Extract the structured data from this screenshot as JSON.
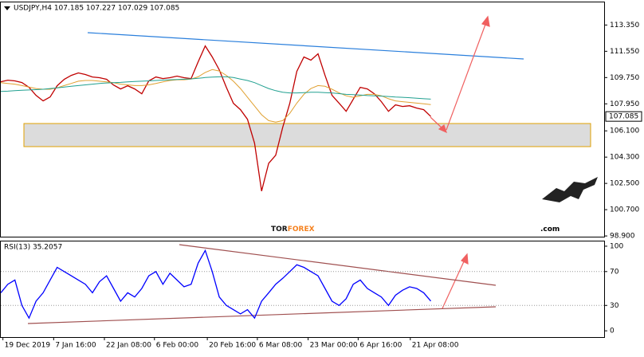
{
  "header": "USDJPY,H4  107.185 107.227 107.029 107.085",
  "watermark": {
    "part1": "TOR",
    "part2": "FOREX",
    "part3": ".com"
  },
  "chart_data": [
    {
      "type": "line",
      "x": [
        0,
        1,
        2,
        3,
        4,
        5,
        6,
        7,
        8,
        9,
        10,
        11,
        12,
        13,
        14,
        15,
        16,
        17,
        18,
        19,
        20,
        21,
        22,
        23,
        24,
        25,
        26,
        27,
        28,
        29,
        30,
        31,
        32,
        33,
        34,
        35,
        36,
        37,
        38,
        39,
        40,
        41,
        42,
        43,
        44,
        45,
        46,
        47,
        48,
        49,
        50,
        51,
        52,
        53,
        54,
        55,
        56,
        57,
        58,
        59,
        60,
        61
      ],
      "xlim": [
        0,
        85.6
      ],
      "ylim": [
        98.85,
        114.9
      ],
      "yticks": [
        {
          "value": 113.35,
          "label": "113.350"
        },
        {
          "value": 111.55,
          "label": "111.550"
        },
        {
          "value": 109.75,
          "label": "109.750"
        },
        {
          "value": 107.95,
          "label": "107.950"
        },
        {
          "value": 106.1,
          "label": "106.100"
        },
        {
          "value": 104.3,
          "label": "104.300"
        },
        {
          "value": 102.5,
          "label": "102.500"
        },
        {
          "value": 100.7,
          "label": "100.700"
        },
        {
          "value": 98.9,
          "label": "98.900"
        }
      ],
      "last_price": {
        "value": 107.085,
        "label": "107.085"
      },
      "grid": false,
      "series": [
        {
          "color": "#c00000",
          "values": [
            109.46,
            109.57,
            109.52,
            109.41,
            109.08,
            108.53,
            108.15,
            108.42,
            109.19,
            109.63,
            109.9,
            110.07,
            109.96,
            109.79,
            109.74,
            109.63,
            109.24,
            108.97,
            109.19,
            108.97,
            108.64,
            109.52,
            109.79,
            109.68,
            109.74,
            109.85,
            109.74,
            109.68,
            110.83,
            111.92,
            111.16,
            110.28,
            109.08,
            107.99,
            107.55,
            106.89,
            105.25,
            101.97,
            103.88,
            104.43,
            106.34,
            107.99,
            110.17,
            111.16,
            110.94,
            111.38,
            109.9,
            108.53,
            107.99,
            107.44,
            108.26,
            109.08,
            108.97,
            108.64,
            108.1,
            107.44,
            107.88,
            107.77,
            107.82,
            107.66,
            107.55,
            107.08
          ]
        },
        {
          "color": "#e0a030",
          "values": [
            109.4,
            109.35,
            109.3,
            109.2,
            109.1,
            109.0,
            108.95,
            108.95,
            109.05,
            109.2,
            109.35,
            109.5,
            109.55,
            109.55,
            109.5,
            109.45,
            109.4,
            109.3,
            109.25,
            109.2,
            109.2,
            109.25,
            109.35,
            109.45,
            109.55,
            109.6,
            109.6,
            109.65,
            109.8,
            110.1,
            110.3,
            110.2,
            109.9,
            109.5,
            109.0,
            108.4,
            107.8,
            107.2,
            106.8,
            106.7,
            106.8,
            107.3,
            108.0,
            108.6,
            109.0,
            109.2,
            109.15,
            108.95,
            108.7,
            108.5,
            108.4,
            108.5,
            108.6,
            108.6,
            108.5,
            108.3,
            108.15,
            108.1,
            108.05,
            108.0,
            107.95,
            107.9
          ]
        },
        {
          "color": "#20a090",
          "values": [
            108.8,
            108.82,
            108.85,
            108.88,
            108.9,
            108.92,
            108.95,
            109.0,
            109.05,
            109.1,
            109.15,
            109.2,
            109.25,
            109.3,
            109.35,
            109.38,
            109.4,
            109.42,
            109.45,
            109.48,
            109.5,
            109.52,
            109.55,
            109.58,
            109.6,
            109.62,
            109.64,
            109.66,
            109.7,
            109.75,
            109.78,
            109.8,
            109.8,
            109.75,
            109.65,
            109.55,
            109.4,
            109.2,
            109.0,
            108.85,
            108.75,
            108.7,
            108.7,
            108.72,
            108.75,
            108.75,
            108.72,
            108.7,
            108.65,
            108.6,
            108.58,
            108.55,
            108.52,
            108.5,
            108.48,
            108.45,
            108.42,
            108.4,
            108.37,
            108.33,
            108.3,
            108.27
          ]
        }
      ]
    },
    {
      "type": "line",
      "title": "RSI(13) 35.2057",
      "x": [
        0,
        1,
        2,
        3,
        4,
        5,
        6,
        7,
        8,
        9,
        10,
        11,
        12,
        13,
        14,
        15,
        16,
        17,
        18,
        19,
        20,
        21,
        22,
        23,
        24,
        25,
        26,
        27,
        28,
        29,
        30,
        31,
        32,
        33,
        34,
        35,
        36,
        37,
        38,
        39,
        40,
        41,
        42,
        43,
        44,
        45,
        46,
        47,
        48,
        49,
        50,
        51,
        52,
        53,
        54,
        55,
        56,
        57,
        58,
        59,
        60,
        61
      ],
      "xlim": [
        0,
        85.6
      ],
      "xticks": [
        {
          "value": 0.3,
          "label": "19 Dec 2019"
        },
        {
          "value": 7.5,
          "label": "7 Jan 16:00"
        },
        {
          "value": 14.7,
          "label": "22 Jan 08:00"
        },
        {
          "value": 21.8,
          "label": "6 Feb 00:00"
        },
        {
          "value": 29.3,
          "label": "20 Feb 16:00"
        },
        {
          "value": 36.4,
          "label": "6 Mar 08:00"
        },
        {
          "value": 43.6,
          "label": "23 Mar 00:00"
        },
        {
          "value": 50.7,
          "label": "6 Apr 16:00"
        },
        {
          "value": 58.1,
          "label": "21 Apr 08:00"
        }
      ],
      "ylim": [
        -7.4,
        105.6
      ],
      "yticks": [
        100,
        70,
        30,
        0
      ],
      "grid": true,
      "series": [
        {
          "color": "#0000ff",
          "values": [
            45,
            55,
            60,
            30,
            15,
            35,
            45,
            60,
            75,
            70,
            65,
            60,
            55,
            45,
            58,
            65,
            50,
            35,
            45,
            40,
            50,
            65,
            70,
            55,
            68,
            60,
            52,
            55,
            80,
            95,
            70,
            40,
            30,
            25,
            20,
            25,
            15,
            35,
            45,
            55,
            62,
            70,
            78,
            75,
            70,
            65,
            50,
            35,
            30,
            38,
            55,
            60,
            50,
            45,
            40,
            30,
            42,
            48,
            52,
            50,
            45,
            35.21
          ]
        }
      ]
    }
  ]
}
